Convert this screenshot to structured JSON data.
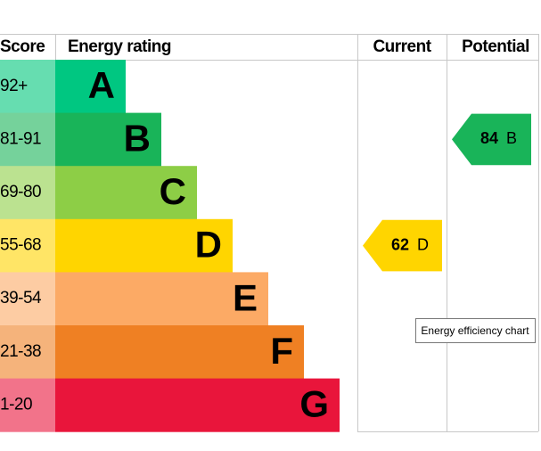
{
  "headers": {
    "score": "Score",
    "rating": "Energy rating",
    "current": "Current",
    "potential": "Potential"
  },
  "bands": [
    {
      "score": "92+",
      "letter": "A",
      "color": "#00c781",
      "light": "#66ddb0"
    },
    {
      "score": "81-91",
      "letter": "B",
      "color": "#19b459",
      "light": "#75d29b"
    },
    {
      "score": "69-80",
      "letter": "C",
      "color": "#8dce46",
      "light": "#bbe290"
    },
    {
      "score": "55-68",
      "letter": "D",
      "color": "#ffd500",
      "light": "#ffe566"
    },
    {
      "score": "39-54",
      "letter": "E",
      "color": "#fcaa65",
      "light": "#fdcca3"
    },
    {
      "score": "21-38",
      "letter": "F",
      "color": "#ef8023",
      "light": "#f5b37b"
    },
    {
      "score": "1-20",
      "letter": "G",
      "color": "#e9153b",
      "light": "#f2738a"
    }
  ],
  "current": {
    "value": 62,
    "letter": "D"
  },
  "potential": {
    "value": 84,
    "letter": "B"
  },
  "tooltip": "Energy efficiency chart"
}
